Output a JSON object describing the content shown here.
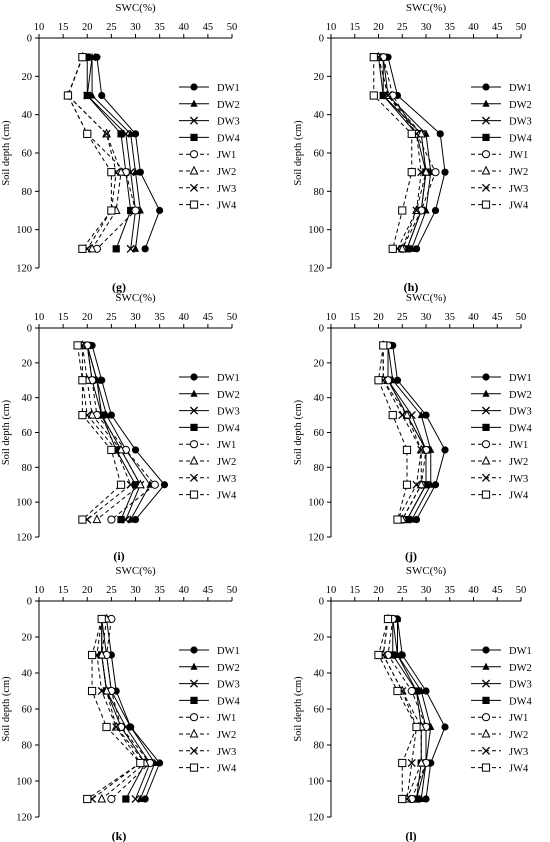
{
  "figure": {
    "series_styles": {
      "DW1": {
        "marker": "filled-circle",
        "line": "solid"
      },
      "DW2": {
        "marker": "filled-triangle",
        "line": "solid"
      },
      "DW3": {
        "marker": "cross",
        "line": "solid"
      },
      "DW4": {
        "marker": "filled-square",
        "line": "solid"
      },
      "JW1": {
        "marker": "open-circle",
        "line": "dashed"
      },
      "JW2": {
        "marker": "open-triangle",
        "line": "dashed"
      },
      "JW3": {
        "marker": "cross",
        "line": "dashed"
      },
      "JW4": {
        "marker": "open-square",
        "line": "dashed"
      }
    },
    "colors": {
      "line": "#000000",
      "background": "#ffffff"
    }
  },
  "chart_data": [
    {
      "type": "line",
      "panel": "(g)",
      "xlabel": "SWC(%)",
      "ylabel": "Soil depth (cm)",
      "xlim": [
        10,
        50
      ],
      "ylim": [
        0,
        120
      ],
      "x_ticks": [
        10,
        15,
        20,
        25,
        30,
        35,
        40,
        45,
        50
      ],
      "y_ticks": [
        0,
        20,
        40,
        60,
        80,
        100,
        120
      ],
      "depths": [
        10,
        30,
        50,
        70,
        90,
        110
      ],
      "legend": "right",
      "series": [
        {
          "name": "DW1",
          "values": [
            22,
            23,
            30,
            31,
            35,
            32
          ]
        },
        {
          "name": "DW2",
          "values": [
            21,
            21,
            29,
            30,
            31,
            30
          ]
        },
        {
          "name": "DW3",
          "values": [
            21,
            20,
            28,
            29,
            30,
            29
          ]
        },
        {
          "name": "DW4",
          "values": [
            20,
            20,
            27,
            28,
            29,
            26
          ]
        },
        {
          "name": "JW1",
          "values": [
            19,
            16,
            20,
            28,
            30,
            22
          ]
        },
        {
          "name": "JW2",
          "values": [
            19,
            16,
            24,
            27,
            26,
            21
          ]
        },
        {
          "name": "JW3",
          "values": [
            19,
            16,
            24,
            26,
            25,
            20
          ]
        },
        {
          "name": "JW4",
          "values": [
            19,
            16,
            20,
            25,
            25,
            19
          ]
        }
      ]
    },
    {
      "type": "line",
      "panel": "(h)",
      "xlabel": "SWC(%)",
      "ylabel": "Soil depth (cm)",
      "xlim": [
        10,
        50
      ],
      "ylim": [
        0,
        120
      ],
      "x_ticks": [
        10,
        15,
        20,
        25,
        30,
        35,
        40,
        45,
        50
      ],
      "y_ticks": [
        0,
        20,
        40,
        60,
        80,
        100,
        120
      ],
      "depths": [
        10,
        30,
        50,
        70,
        90,
        110
      ],
      "legend": "right",
      "series": [
        {
          "name": "DW1",
          "values": [
            22,
            24,
            33,
            34,
            32,
            28
          ]
        },
        {
          "name": "DW2",
          "values": [
            21,
            22,
            30,
            31,
            30,
            27
          ]
        },
        {
          "name": "DW3",
          "values": [
            21,
            21,
            29,
            30,
            29,
            26
          ]
        },
        {
          "name": "DW4",
          "values": [
            20,
            21,
            28,
            30,
            29,
            26
          ]
        },
        {
          "name": "JW1",
          "values": [
            21,
            23,
            28,
            32,
            29,
            25
          ]
        },
        {
          "name": "JW2",
          "values": [
            20,
            22,
            29,
            30,
            28,
            25
          ]
        },
        {
          "name": "JW3",
          "values": [
            20,
            22,
            28,
            29,
            28,
            24
          ]
        },
        {
          "name": "JW4",
          "values": [
            19,
            19,
            27,
            27,
            25,
            23
          ]
        }
      ]
    },
    {
      "type": "line",
      "panel": "(i)",
      "xlabel": "SWC(%)",
      "ylabel": "Soil depth (cm)",
      "xlim": [
        10,
        50
      ],
      "ylim": [
        0,
        120
      ],
      "x_ticks": [
        10,
        15,
        20,
        25,
        30,
        35,
        40,
        45,
        50
      ],
      "y_ticks": [
        0,
        20,
        40,
        60,
        80,
        100,
        120
      ],
      "depths": [
        10,
        30,
        50,
        70,
        90,
        110
      ],
      "legend": "right",
      "series": [
        {
          "name": "DW1",
          "values": [
            21,
            23,
            25,
            30,
            36,
            30
          ]
        },
        {
          "name": "DW2",
          "values": [
            20,
            22,
            24,
            28,
            33,
            29
          ]
        },
        {
          "name": "DW3",
          "values": [
            20,
            22,
            23,
            27,
            31,
            28
          ]
        },
        {
          "name": "DW4",
          "values": [
            20,
            21,
            23,
            26,
            30,
            27
          ]
        },
        {
          "name": "JW1",
          "values": [
            20,
            21,
            22,
            28,
            34,
            25
          ]
        },
        {
          "name": "JW2",
          "values": [
            19,
            20,
            21,
            27,
            31,
            22
          ]
        },
        {
          "name": "JW3",
          "values": [
            19,
            19,
            20,
            26,
            29,
            20
          ]
        },
        {
          "name": "JW4",
          "values": [
            18,
            19,
            19,
            25,
            27,
            19
          ]
        }
      ]
    },
    {
      "type": "line",
      "panel": "(j)",
      "xlabel": "SWC(%)",
      "ylabel": "Soil depth (cm)",
      "xlim": [
        10,
        50
      ],
      "ylim": [
        0,
        120
      ],
      "x_ticks": [
        10,
        15,
        20,
        25,
        30,
        35,
        40,
        45,
        50
      ],
      "y_ticks": [
        0,
        20,
        40,
        60,
        80,
        100,
        120
      ],
      "depths": [
        10,
        30,
        50,
        70,
        90,
        110
      ],
      "legend": "right",
      "series": [
        {
          "name": "DW1",
          "values": [
            23,
            24,
            30,
            34,
            32,
            28
          ]
        },
        {
          "name": "DW2",
          "values": [
            22,
            23,
            29,
            31,
            31,
            27
          ]
        },
        {
          "name": "DW3",
          "values": [
            22,
            22,
            27,
            30,
            30,
            26
          ]
        },
        {
          "name": "DW4",
          "values": [
            22,
            22,
            26,
            30,
            30,
            26
          ]
        },
        {
          "name": "JW1",
          "values": [
            22,
            22,
            26,
            30,
            29,
            25
          ]
        },
        {
          "name": "JW2",
          "values": [
            21,
            21,
            26,
            29,
            29,
            25
          ]
        },
        {
          "name": "JW3",
          "values": [
            21,
            21,
            25,
            29,
            28,
            24
          ]
        },
        {
          "name": "JW4",
          "values": [
            21,
            20,
            23,
            26,
            26,
            24
          ]
        }
      ]
    },
    {
      "type": "line",
      "panel": "(k)",
      "xlabel": "SWC(%)",
      "ylabel": "Soil depth (cm)",
      "xlim": [
        10,
        50
      ],
      "ylim": [
        0,
        120
      ],
      "x_ticks": [
        10,
        15,
        20,
        25,
        30,
        35,
        40,
        45,
        50
      ],
      "y_ticks": [
        0,
        20,
        40,
        60,
        80,
        100,
        120
      ],
      "depths": [
        10,
        30,
        50,
        70,
        90,
        110
      ],
      "legend": "right",
      "series": [
        {
          "name": "DW1",
          "values": [
            24,
            25,
            26,
            29,
            35,
            32
          ]
        },
        {
          "name": "DW2",
          "values": [
            23,
            24,
            25,
            29,
            34,
            31
          ]
        },
        {
          "name": "DW3",
          "values": [
            23,
            23,
            24,
            28,
            33,
            30
          ]
        },
        {
          "name": "DW4",
          "values": [
            23,
            23,
            24,
            27,
            32,
            28
          ]
        },
        {
          "name": "JW1",
          "values": [
            25,
            24,
            25,
            27,
            33,
            25
          ]
        },
        {
          "name": "JW2",
          "values": [
            24,
            23,
            24,
            26,
            32,
            23
          ]
        },
        {
          "name": "JW3",
          "values": [
            23,
            22,
            23,
            26,
            31,
            21
          ]
        },
        {
          "name": "JW4",
          "values": [
            23,
            21,
            21,
            24,
            31,
            20
          ]
        }
      ]
    },
    {
      "type": "line",
      "panel": "(l)",
      "xlabel": "SWC(%)",
      "ylabel": "Soil depth (cm)",
      "xlim": [
        10,
        50
      ],
      "ylim": [
        0,
        120
      ],
      "x_ticks": [
        10,
        15,
        20,
        25,
        30,
        35,
        40,
        45,
        50
      ],
      "y_ticks": [
        0,
        20,
        40,
        60,
        80,
        100,
        120
      ],
      "depths": [
        10,
        30,
        50,
        70,
        90,
        110
      ],
      "legend": "right",
      "series": [
        {
          "name": "DW1",
          "values": [
            24,
            25,
            30,
            34,
            31,
            30
          ]
        },
        {
          "name": "DW2",
          "values": [
            24,
            24,
            29,
            31,
            30,
            29
          ]
        },
        {
          "name": "DW3",
          "values": [
            23,
            24,
            28,
            30,
            30,
            28
          ]
        },
        {
          "name": "DW4",
          "values": [
            23,
            23,
            28,
            29,
            29,
            28
          ]
        },
        {
          "name": "JW1",
          "values": [
            23,
            22,
            27,
            30,
            30,
            27
          ]
        },
        {
          "name": "JW2",
          "values": [
            22,
            21,
            25,
            29,
            29,
            26
          ]
        },
        {
          "name": "JW3",
          "values": [
            22,
            21,
            25,
            28,
            27,
            26
          ]
        },
        {
          "name": "JW4",
          "values": [
            22,
            20,
            24,
            28,
            25,
            25
          ]
        }
      ]
    }
  ]
}
